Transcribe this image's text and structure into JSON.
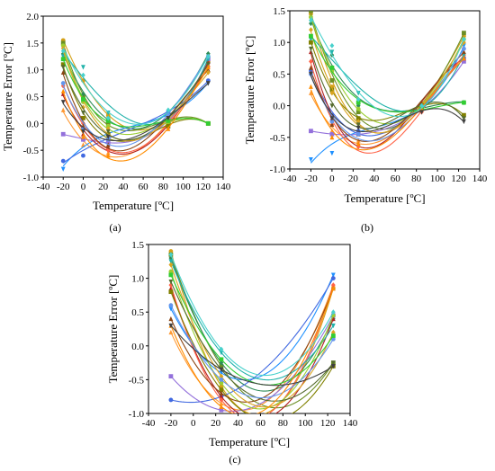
{
  "chart_data": [
    {
      "id": "a",
      "type": "line",
      "panel_label": "(a)",
      "xlabel": "Temperature [ºC]",
      "ylabel": "Temperature Error [ºC]",
      "xlim": [
        -40,
        140
      ],
      "ylim": [
        -1.0,
        2.0
      ],
      "xticks": [
        "-40",
        "-20",
        "0",
        "20",
        "40",
        "60",
        "80",
        "100",
        "120",
        "140"
      ],
      "yticks": [
        "-1.0",
        "-0.5",
        "0.0",
        "0.5",
        "1.0",
        "1.5",
        "2.0"
      ],
      "x": [
        -20,
        0,
        25,
        85,
        125
      ],
      "series": [
        {
          "color": "#d4a017",
          "values": [
            1.55,
            0.8,
            0.15,
            0.1,
            1.15
          ]
        },
        {
          "color": "#6b8e23",
          "values": [
            1.5,
            0.5,
            0.0,
            0.05,
            0.0
          ]
        },
        {
          "color": "#ff9933",
          "values": [
            0.25,
            -0.4,
            -0.55,
            0.0,
            1.1
          ]
        },
        {
          "color": "#2e8b57",
          "values": [
            1.3,
            0.55,
            0.1,
            0.2,
            1.3
          ]
        },
        {
          "color": "#1e90ff",
          "values": [
            -0.85,
            -0.3,
            -0.3,
            0.2,
            0.75
          ]
        },
        {
          "color": "#4169e1",
          "values": [
            -0.7,
            -0.6,
            -0.2,
            0.2,
            0.8
          ]
        },
        {
          "color": "#9370db",
          "values": [
            -0.2,
            -0.3,
            -0.35,
            0.05,
            1.2
          ]
        },
        {
          "color": "#b22222",
          "values": [
            0.55,
            -0.2,
            -0.45,
            -0.05,
            1.15
          ]
        },
        {
          "color": "#ff6347",
          "values": [
            0.7,
            0.0,
            -0.5,
            0.0,
            1.05
          ]
        },
        {
          "color": "#20b2aa",
          "values": [
            1.25,
            1.05,
            0.2,
            0.15,
            1.2
          ]
        },
        {
          "color": "#9acd32",
          "values": [
            1.45,
            0.4,
            -0.05,
            0.0,
            0.0
          ]
        },
        {
          "color": "#808000",
          "values": [
            1.1,
            0.1,
            -0.2,
            -0.05,
            0.0
          ]
        },
        {
          "color": "#8b4513",
          "values": [
            0.95,
            -0.05,
            -0.4,
            0.1,
            1.0
          ]
        },
        {
          "color": "#daa520",
          "values": [
            1.4,
            0.3,
            -0.1,
            0.05,
            0.95
          ]
        },
        {
          "color": "#556b2f",
          "values": [
            1.05,
            0.2,
            -0.15,
            0.1,
            1.1
          ]
        },
        {
          "color": "#6495ed",
          "values": [
            0.75,
            -0.1,
            -0.3,
            0.15,
            1.25
          ]
        },
        {
          "color": "#32cd32",
          "values": [
            1.2,
            0.45,
            0.05,
            0.05,
            0.0
          ]
        },
        {
          "color": "#ff8c00",
          "values": [
            0.6,
            -0.25,
            -0.6,
            -0.1,
            1.05
          ]
        },
        {
          "color": "#48d1cc",
          "values": [
            1.35,
            0.9,
            0.1,
            0.25,
            1.25
          ]
        },
        {
          "color": "#404040",
          "values": [
            0.4,
            -0.15,
            -0.25,
            0.1,
            0.75
          ]
        }
      ]
    },
    {
      "id": "b",
      "type": "line",
      "panel_label": "(b)",
      "xlabel": "Temperature [ºC]",
      "ylabel": "Temperature Error [ºC]",
      "xlim": [
        -40,
        140
      ],
      "ylim": [
        -1.0,
        1.5
      ],
      "xticks": [
        "-40",
        "-20",
        "0",
        "20",
        "40",
        "60",
        "80",
        "100",
        "120",
        "140"
      ],
      "yticks": [
        "-1.0",
        "-0.5",
        "0.0",
        "0.5",
        "1.0",
        "1.5"
      ],
      "x": [
        -20,
        0,
        25,
        85,
        125
      ],
      "series": [
        {
          "color": "#d4a017",
          "values": [
            1.45,
            0.3,
            -0.2,
            0.0,
            1.1
          ]
        },
        {
          "color": "#6b8e23",
          "values": [
            1.5,
            0.4,
            -0.1,
            0.0,
            1.15
          ]
        },
        {
          "color": "#ff9933",
          "values": [
            0.2,
            -0.4,
            -0.55,
            -0.05,
            0.8
          ]
        },
        {
          "color": "#2e8b57",
          "values": [
            1.3,
            0.8,
            0.0,
            0.0,
            0.05
          ]
        },
        {
          "color": "#1e90ff",
          "values": [
            -0.85,
            -0.75,
            -0.3,
            -0.05,
            0.95
          ]
        },
        {
          "color": "#4169e1",
          "values": [
            0.55,
            -0.15,
            -0.4,
            0.0,
            0.75
          ]
        },
        {
          "color": "#9370db",
          "values": [
            -0.4,
            -0.45,
            -0.45,
            -0.05,
            0.7
          ]
        },
        {
          "color": "#b22222",
          "values": [
            0.85,
            -0.2,
            -0.6,
            0.05,
            0.75
          ]
        },
        {
          "color": "#ff6347",
          "values": [
            0.7,
            -0.3,
            -0.65,
            -0.1,
            0.8
          ]
        },
        {
          "color": "#20b2aa",
          "values": [
            1.05,
            0.85,
            0.2,
            0.0,
            0.8
          ]
        },
        {
          "color": "#9acd32",
          "values": [
            1.4,
            0.55,
            -0.05,
            0.0,
            1.05
          ]
        },
        {
          "color": "#808000",
          "values": [
            1.0,
            0.25,
            -0.2,
            0.0,
            -0.15
          ]
        },
        {
          "color": "#8b4513",
          "values": [
            0.6,
            -0.3,
            -0.45,
            0.05,
            0.85
          ]
        },
        {
          "color": "#daa520",
          "values": [
            1.2,
            0.2,
            -0.25,
            0.0,
            1.0
          ]
        },
        {
          "color": "#556b2f",
          "values": [
            0.9,
            0.0,
            -0.3,
            0.0,
            -0.2
          ]
        },
        {
          "color": "#6495ed",
          "values": [
            0.5,
            -0.25,
            -0.45,
            -0.05,
            0.9
          ]
        },
        {
          "color": "#32cd32",
          "values": [
            1.1,
            0.6,
            0.05,
            -0.05,
            0.05
          ]
        },
        {
          "color": "#ff8c00",
          "values": [
            0.3,
            -0.5,
            -0.6,
            -0.05,
            0.75
          ]
        },
        {
          "color": "#48d1cc",
          "values": [
            1.35,
            0.95,
            0.1,
            0.0,
            1.05
          ]
        },
        {
          "color": "#404040",
          "values": [
            0.5,
            -0.2,
            -0.35,
            -0.1,
            -0.25
          ]
        }
      ]
    },
    {
      "id": "c",
      "type": "line",
      "panel_label": "(c)",
      "xlabel": "Temperature [ºC]",
      "ylabel": "Temperature Error [ºC]",
      "xlim": [
        -40,
        140
      ],
      "ylim": [
        -1.0,
        1.5
      ],
      "xticks": [
        "-40",
        "-20",
        "0",
        "20",
        "40",
        "60",
        "80",
        "100",
        "120",
        "140"
      ],
      "yticks": [
        "-1.0",
        "-0.5",
        "0.0",
        "0.5",
        "1.0",
        "1.5"
      ],
      "x": [
        -20,
        25,
        125
      ],
      "series": [
        {
          "color": "#d4a017",
          "values": [
            1.4,
            -0.6,
            0.85
          ]
        },
        {
          "color": "#6b8e23",
          "values": [
            1.35,
            -0.3,
            -0.25
          ]
        },
        {
          "color": "#ff9933",
          "values": [
            0.2,
            -0.85,
            0.9
          ]
        },
        {
          "color": "#2e8b57",
          "values": [
            1.3,
            -0.25,
            0.4
          ]
        },
        {
          "color": "#1e90ff",
          "values": [
            0.55,
            -0.4,
            1.05
          ]
        },
        {
          "color": "#4169e1",
          "values": [
            -0.8,
            -0.75,
            1.0
          ]
        },
        {
          "color": "#9370db",
          "values": [
            -0.45,
            -0.95,
            0.45
          ]
        },
        {
          "color": "#b22222",
          "values": [
            0.85,
            -0.75,
            0.4
          ]
        },
        {
          "color": "#ff6347",
          "values": [
            0.9,
            -0.8,
            0.9
          ]
        },
        {
          "color": "#20b2aa",
          "values": [
            1.25,
            -0.1,
            0.3
          ]
        },
        {
          "color": "#9acd32",
          "values": [
            1.1,
            -0.55,
            0.45
          ]
        },
        {
          "color": "#808000",
          "values": [
            0.8,
            -0.65,
            -0.3
          ]
        },
        {
          "color": "#8b4513",
          "values": [
            0.4,
            -0.7,
            0.85
          ]
        },
        {
          "color": "#daa520",
          "values": [
            1.2,
            -0.45,
            0.2
          ]
        },
        {
          "color": "#556b2f",
          "values": [
            0.95,
            -0.35,
            -0.25
          ]
        },
        {
          "color": "#6495ed",
          "values": [
            0.6,
            -0.5,
            0.1
          ]
        },
        {
          "color": "#32cd32",
          "values": [
            1.05,
            -0.2,
            0.15
          ]
        },
        {
          "color": "#ff8c00",
          "values": [
            0.3,
            -0.9,
            0.85
          ]
        },
        {
          "color": "#48d1cc",
          "values": [
            1.35,
            -0.05,
            0.5
          ]
        },
        {
          "color": "#404040",
          "values": [
            0.3,
            -0.35,
            -0.3
          ]
        }
      ]
    }
  ]
}
